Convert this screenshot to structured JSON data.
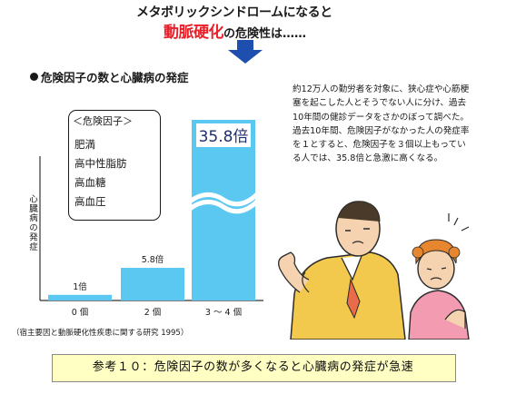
{
  "header": {
    "line1": "メタボリックシンドロームになると",
    "keyword": "動脈硬化",
    "line2_rest": "の危険性は……"
  },
  "section_title": "危険因子の数と心臓病の発症",
  "risk_factors": {
    "title": "＜危険因子＞",
    "items": [
      "肥満",
      "高中性脂肪",
      "高血糖",
      "高血圧"
    ]
  },
  "chart_data": {
    "type": "bar",
    "categories": [
      "0 個",
      "2 個",
      "3 ～ 4 個"
    ],
    "values": [
      1,
      5.8,
      35.8
    ],
    "value_labels": [
      "1倍",
      "5.8倍",
      "35.8倍"
    ],
    "ylabel": "心臓病の発症",
    "axis_break": true,
    "bar_color": "#5bc8f2"
  },
  "citation": "（宿主要因と動脈硬化性疾患に関する研究 1995）",
  "paragraph": "約12万人の勤労者を対象に、狭心症や心筋梗塞を起こした人とそうでない人に分け、過去10年間の健診データをさかのぼって調べた。過去10年間、危険因子がなかった人の発症率を１とすると、危険因子を３個以上もっている人では、35.8倍と急激に高くなる。",
  "bottom_note": "参考１０：危険因子の数が多くなると心臓病の発症が急速",
  "colors": {
    "accent_red": "#e8202a",
    "arrow_blue": "#1f4fae",
    "note_bg": "#ffffc4"
  }
}
